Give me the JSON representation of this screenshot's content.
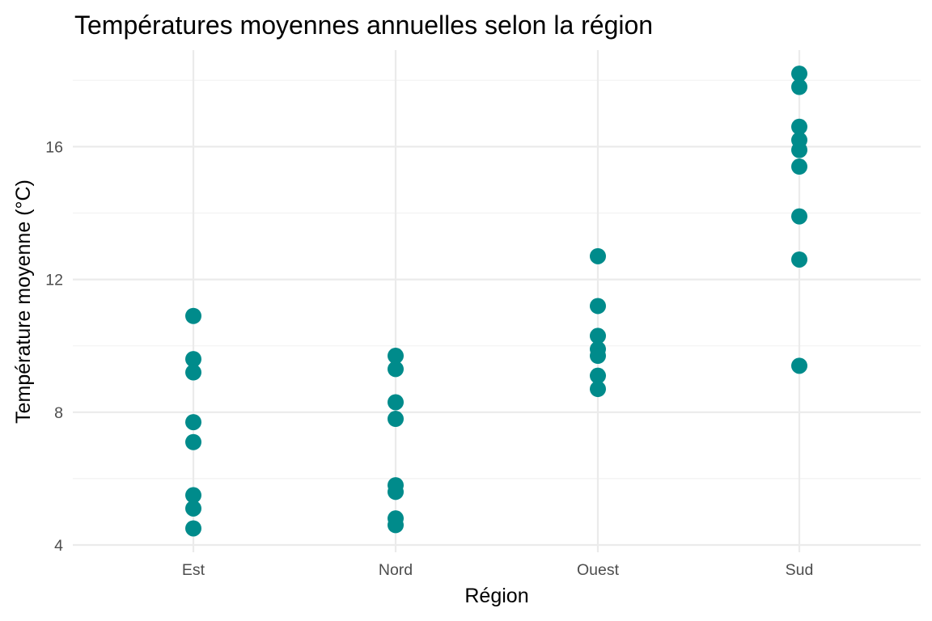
{
  "chart_data": {
    "type": "scatter",
    "title": "Températures moyennes annuelles selon la région",
    "xlabel": "Région",
    "ylabel": "Température moyenne (°C)",
    "categories": [
      "Est",
      "Nord",
      "Ouest",
      "Sud"
    ],
    "y_ticks": [
      4,
      8,
      12,
      16
    ],
    "ylim": [
      3.6,
      18.9
    ],
    "grid": true,
    "legend": "none",
    "point_color": "#008b8b",
    "points": {
      "Est": [
        10.9,
        9.6,
        9.2,
        7.7,
        7.1,
        5.5,
        5.1,
        4.5
      ],
      "Nord": [
        9.7,
        9.3,
        8.3,
        7.8,
        5.8,
        5.6,
        4.8,
        4.6
      ],
      "Ouest": [
        12.7,
        11.2,
        10.3,
        9.9,
        9.7,
        9.1,
        8.7
      ],
      "Sud": [
        18.2,
        17.8,
        16.6,
        16.2,
        15.9,
        15.4,
        13.9,
        12.6,
        9.4
      ]
    }
  }
}
